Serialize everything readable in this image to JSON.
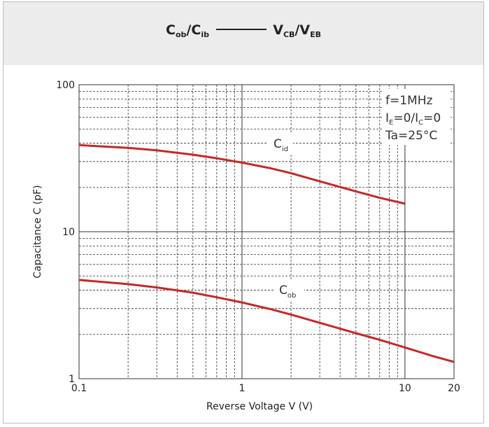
{
  "header": {
    "left_main": "C",
    "left_sub1": "ob",
    "slash1": "/",
    "left_main2": "C",
    "left_sub2": "ib",
    "right_main": "V",
    "right_sub1": "CB",
    "slash2": "/",
    "right_main2": "V",
    "right_sub2": "EB"
  },
  "chart_data": {
    "type": "line",
    "xscale": "log",
    "yscale": "log",
    "xlim": [
      0.1,
      20
    ],
    "ylim": [
      1,
      100
    ],
    "xticks": [
      0.1,
      1,
      10,
      20
    ],
    "xtick_labels": [
      "0.1",
      "1",
      "10",
      "20"
    ],
    "yticks": [
      1,
      10,
      100
    ],
    "ytick_labels": [
      "1",
      "10",
      "100"
    ],
    "xlabel": "Reverse Voltage  V (V)",
    "ylabel": "Capacitance C (pF)",
    "grid": true,
    "annotations": {
      "line1": "f=1MHz",
      "line2_a": "I",
      "line2_a_sub": "E",
      "line2_b": "=0/I",
      "line2_b_sub": "C",
      "line2_c": "=0",
      "line3": "Ta=25°C"
    },
    "series": [
      {
        "name": "C",
        "name_sub": "id",
        "color": "#c62828",
        "x": [
          0.1,
          0.2,
          0.3,
          0.5,
          0.7,
          1,
          1.5,
          2,
          3,
          5,
          7,
          10
        ],
        "y": [
          38.8,
          37.2,
          35.8,
          33.4,
          31.6,
          29.5,
          27.0,
          25.0,
          22.0,
          18.8,
          17.0,
          15.5
        ]
      },
      {
        "name": "C",
        "name_sub": "ob",
        "color": "#c62828",
        "x": [
          0.1,
          0.2,
          0.3,
          0.5,
          0.7,
          1,
          1.5,
          2,
          3,
          5,
          7,
          10,
          15,
          20
        ],
        "y": [
          4.7,
          4.4,
          4.18,
          3.85,
          3.58,
          3.3,
          2.97,
          2.73,
          2.4,
          2.04,
          1.84,
          1.63,
          1.42,
          1.3
        ]
      }
    ]
  }
}
